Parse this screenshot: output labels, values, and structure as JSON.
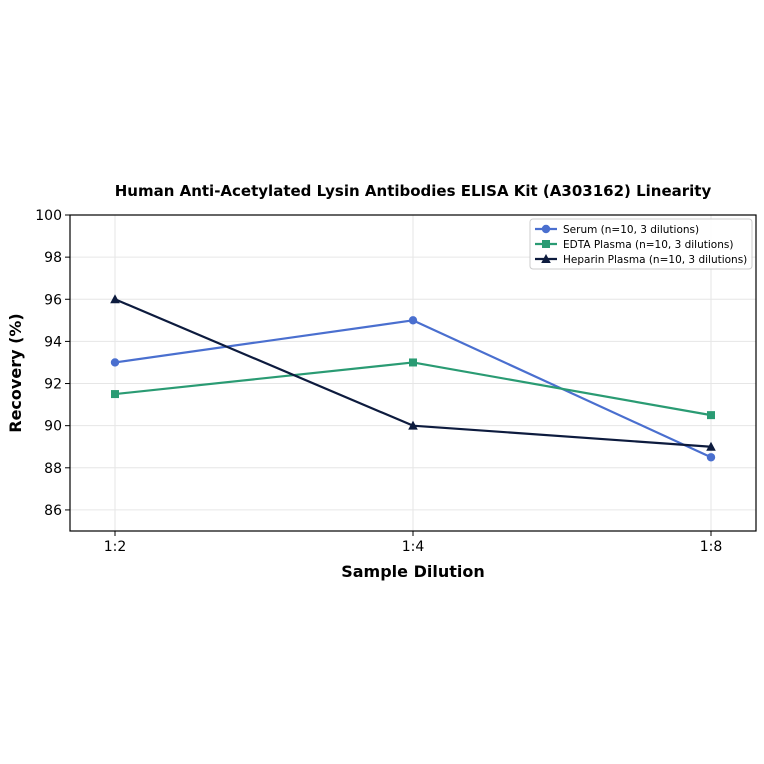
{
  "chart_data": {
    "type": "line",
    "title": "Human Anti-Acetylated Lysin Antibodies ELISA Kit (A303162) Linearity",
    "xlabel": "Sample Dilution",
    "ylabel": "Recovery (%)",
    "categories": [
      "1:2",
      "1:4",
      "1:8"
    ],
    "ylim": [
      85,
      100
    ],
    "yticks": [
      86,
      88,
      90,
      92,
      94,
      96,
      98,
      100
    ],
    "grid": true,
    "legend_position": "top-right",
    "series": [
      {
        "name": "Serum (n=10, 3 dilutions)",
        "values": [
          93,
          95,
          88.5
        ],
        "color": "#4a6fcf",
        "marker": "circle"
      },
      {
        "name": "EDTA Plasma (n=10, 3 dilutions)",
        "values": [
          91.5,
          93,
          90.5
        ],
        "color": "#2a9b73",
        "marker": "square"
      },
      {
        "name": "Heparin Plasma (n=10, 3 dilutions)",
        "values": [
          96,
          90,
          89
        ],
        "color": "#0d1b3e",
        "marker": "triangle"
      }
    ]
  }
}
